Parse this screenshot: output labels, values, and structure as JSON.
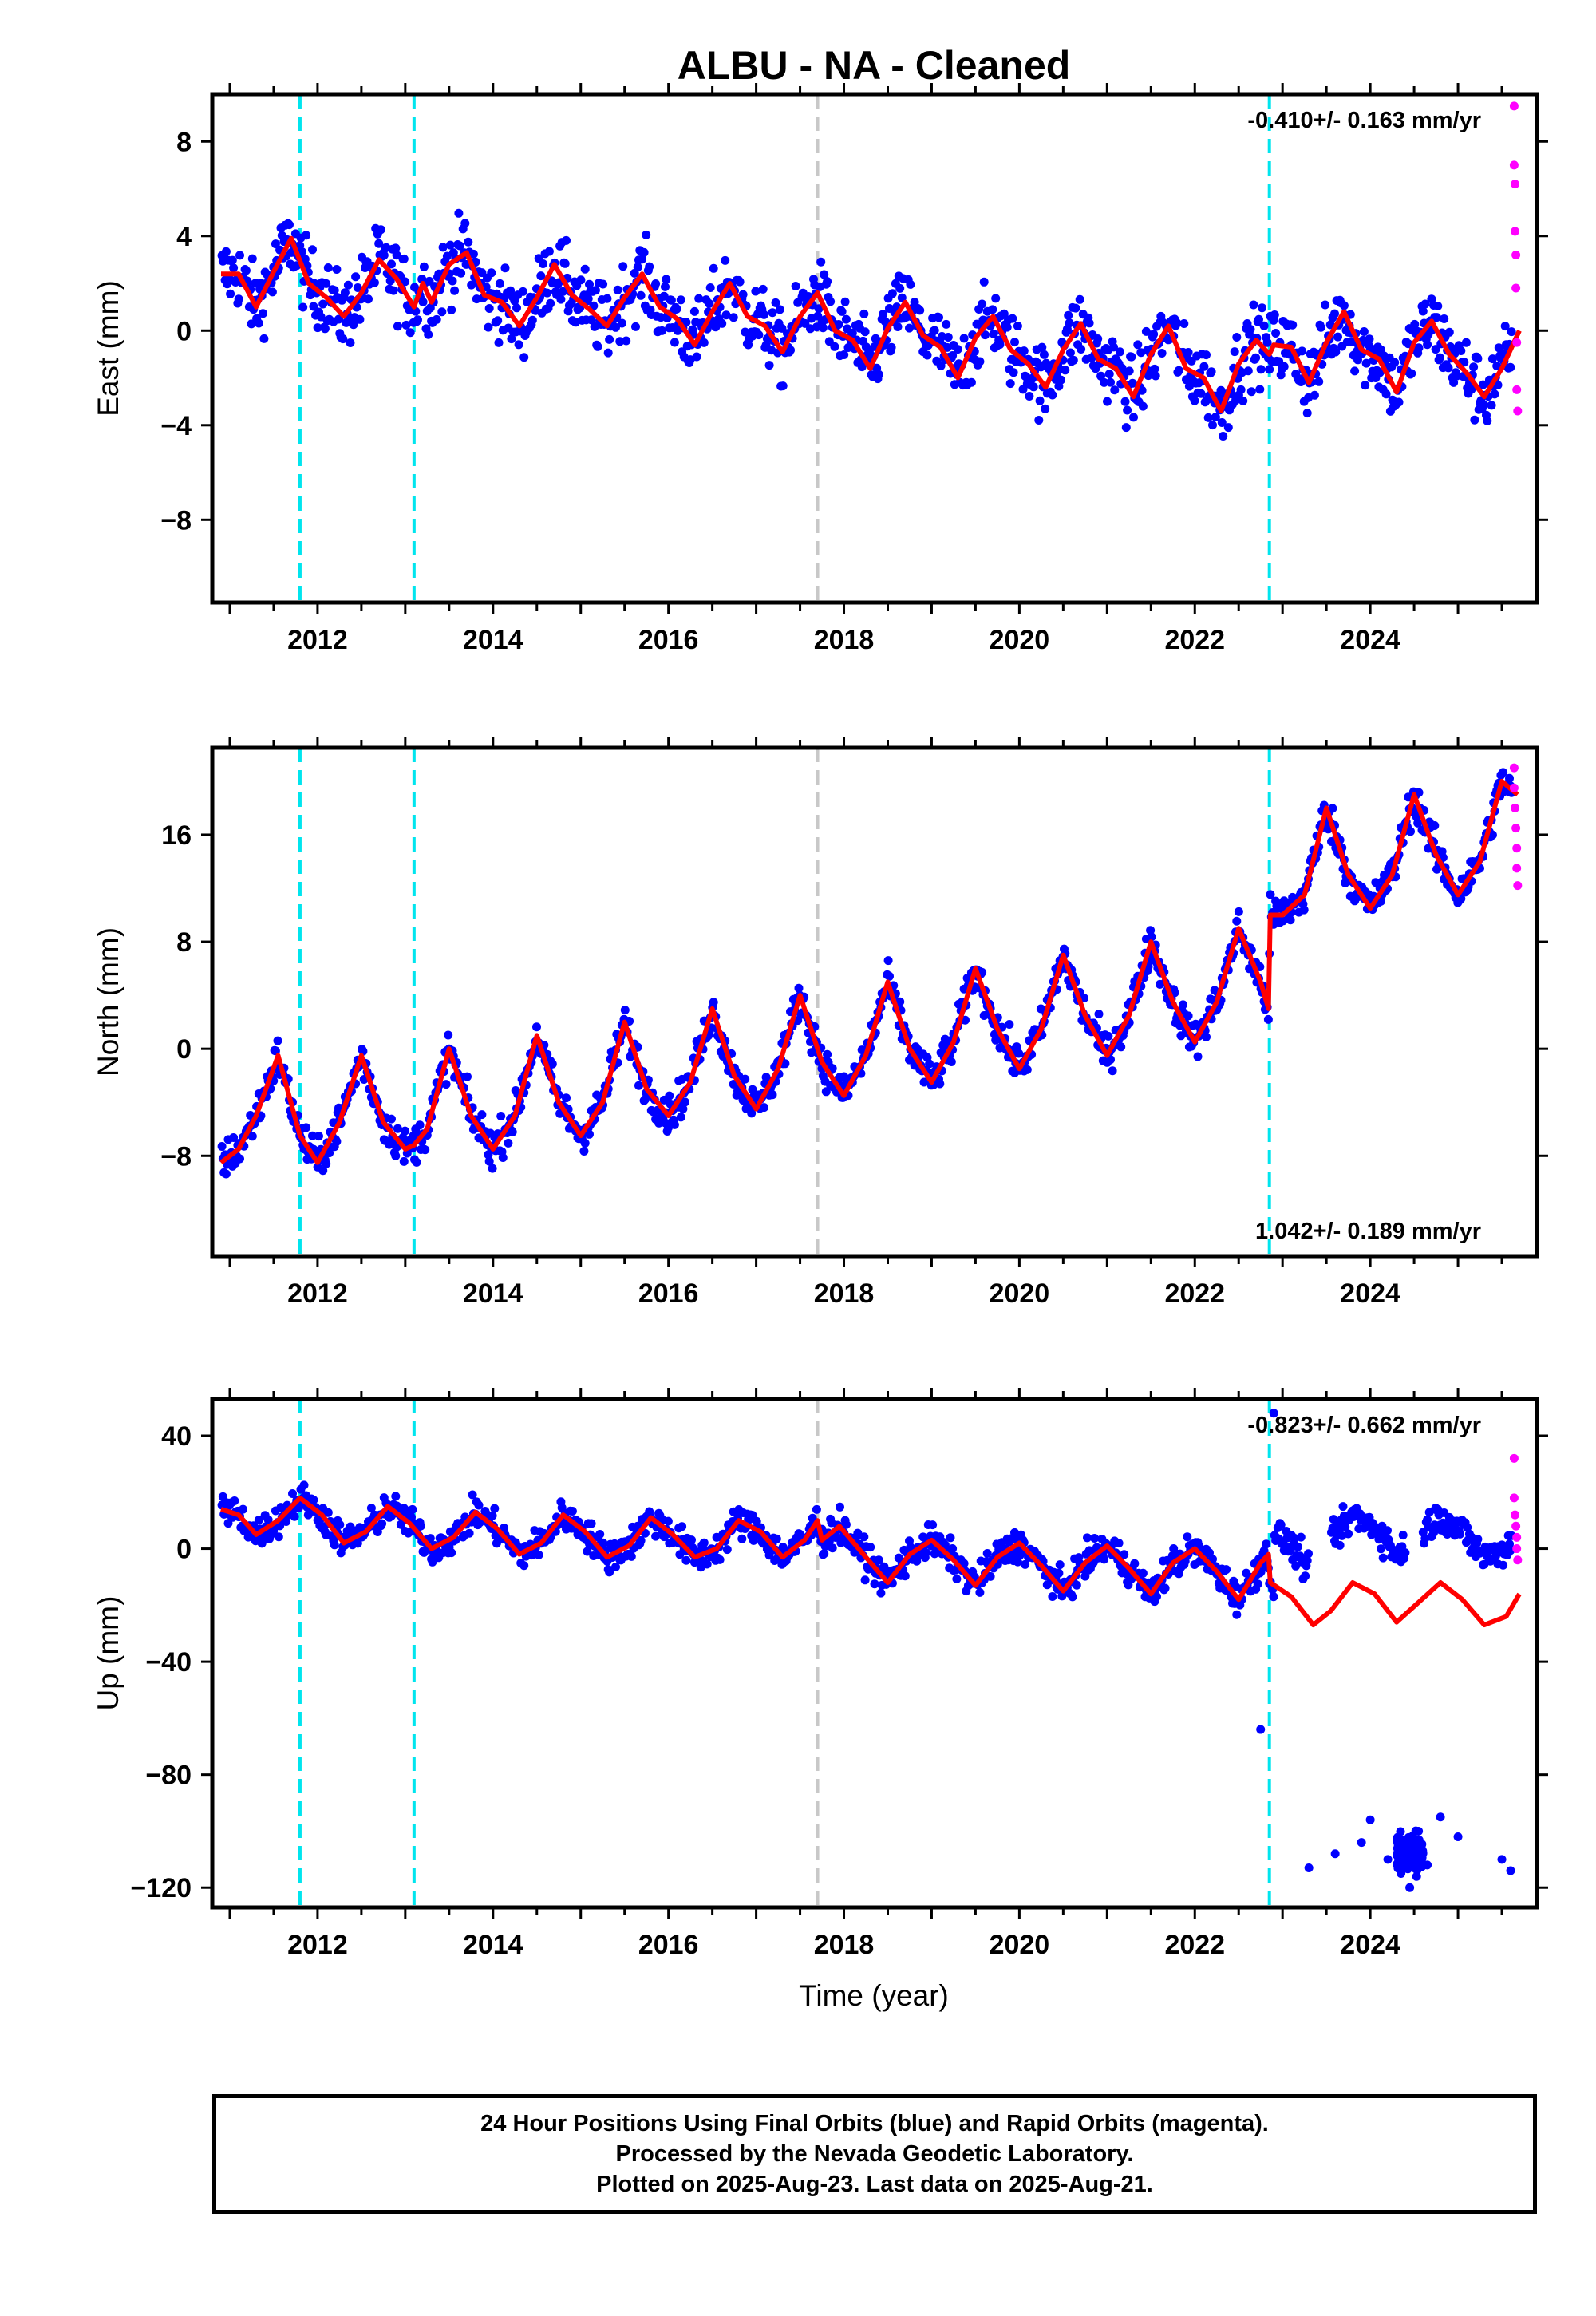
{
  "chart_data": {
    "type": "scatter",
    "title": "ALBU  - NA - Cleaned",
    "xlabel": "Time (year)",
    "x_ticks": [
      2012,
      2014,
      2016,
      2018,
      2020,
      2022,
      2024
    ],
    "xlim": [
      2010.8,
      2025.9
    ],
    "colors": {
      "final_orbits": "#0000ff",
      "rapid_orbits": "#ff00ff",
      "model": "#ff0000",
      "equipment_change": "#00e5ee",
      "other_event": "#c8c8c8",
      "frame": "#000000"
    },
    "event_lines": [
      {
        "x": 2011.8,
        "kind": "equipment_change"
      },
      {
        "x": 2013.1,
        "kind": "equipment_change"
      },
      {
        "x": 2017.7,
        "kind": "other_event"
      },
      {
        "x": 2022.85,
        "kind": "equipment_change"
      }
    ],
    "panels": [
      {
        "component": "east",
        "ylabel": "East (mm)",
        "ylim": [
          -11.5,
          10
        ],
        "y_ticks": [
          8,
          4,
          0,
          -4,
          -8
        ],
        "y_tick_labels": [
          "8",
          "4",
          "0",
          "−4",
          "−8"
        ],
        "rate_text": "-0.410+/- 0.163 mm/yr",
        "rate_position": "top-right",
        "series": [
          {
            "role": "model",
            "x": [
              2010.9,
              2011.1,
              2011.3,
              2011.5,
              2011.7,
              2011.9,
              2012.1,
              2012.3,
              2012.5,
              2012.7,
              2012.9,
              2013.1,
              2013.2,
              2013.3,
              2013.5,
              2013.7,
              2013.9,
              2014.1,
              2014.3,
              2014.5,
              2014.7,
              2014.9,
              2015.1,
              2015.3,
              2015.5,
              2015.7,
              2015.9,
              2016.1,
              2016.3,
              2016.5,
              2016.7,
              2016.9,
              2017.1,
              2017.3,
              2017.5,
              2017.7,
              2017.9,
              2018.1,
              2018.3,
              2018.5,
              2018.7,
              2018.9,
              2019.1,
              2019.3,
              2019.5,
              2019.7,
              2019.9,
              2020.1,
              2020.3,
              2020.5,
              2020.7,
              2020.9,
              2021.1,
              2021.3,
              2021.5,
              2021.7,
              2021.9,
              2022.1,
              2022.3,
              2022.5,
              2022.7,
              2022.85,
              2022.9,
              2023.1,
              2023.3,
              2023.5,
              2023.7,
              2023.9,
              2024.1,
              2024.3,
              2024.5,
              2024.7,
              2024.9,
              2025.1,
              2025.3,
              2025.5,
              2025.7
            ],
            "y": [
              2.4,
              2.4,
              1.0,
              2.5,
              3.9,
              2.0,
              1.4,
              0.6,
              1.6,
              3.0,
              2.2,
              1.0,
              2.0,
              1.2,
              2.8,
              3.3,
              1.5,
              1.2,
              0.2,
              1.4,
              2.8,
              1.5,
              0.9,
              0.2,
              1.4,
              2.4,
              1.0,
              0.5,
              -0.6,
              0.8,
              2.0,
              0.6,
              0.2,
              -0.9,
              0.6,
              1.6,
              0.0,
              -0.4,
              -1.6,
              0.1,
              1.2,
              -0.2,
              -0.7,
              -2.0,
              -0.3,
              0.6,
              -0.8,
              -1.4,
              -2.4,
              -0.8,
              0.3,
              -1.2,
              -1.6,
              -2.8,
              -1.0,
              0.2,
              -1.6,
              -2.0,
              -3.4,
              -1.4,
              -0.4,
              -1.0,
              -0.6,
              -0.7,
              -2.2,
              -0.5,
              0.8,
              -0.8,
              -1.2,
              -2.6,
              -0.5,
              0.4,
              -1.0,
              -1.8,
              -2.8,
              -1.6,
              0.0
            ]
          },
          {
            "role": "rapid",
            "x": [
              2025.64,
              2025.64,
              2025.65,
              2025.65,
              2025.66,
              2025.66,
              2025.67,
              2025.67,
              2025.68
            ],
            "y": [
              9.5,
              7.0,
              6.2,
              4.2,
              3.2,
              1.8,
              -0.5,
              -2.5,
              -3.4
            ]
          }
        ]
      },
      {
        "component": "north",
        "ylabel": "North (mm)",
        "ylim": [
          -15.5,
          22.5
        ],
        "y_ticks": [
          16,
          8,
          0,
          -8
        ],
        "y_tick_labels": [
          "16",
          "8",
          "0",
          "−8"
        ],
        "rate_text": "1.042+/- 0.189 mm/yr",
        "rate_position": "bottom-right",
        "series": [
          {
            "role": "model",
            "x": [
              2010.9,
              2011.1,
              2011.3,
              2011.55,
              2011.8,
              2012.0,
              2012.25,
              2012.5,
              2012.75,
              2013.0,
              2013.1,
              2013.25,
              2013.5,
              2013.75,
              2014.0,
              2014.25,
              2014.5,
              2014.75,
              2015.0,
              2015.25,
              2015.5,
              2015.75,
              2016.0,
              2016.25,
              2016.5,
              2016.75,
              2017.0,
              2017.25,
              2017.5,
              2017.75,
              2018.0,
              2018.25,
              2018.5,
              2018.75,
              2019.0,
              2019.25,
              2019.5,
              2019.75,
              2020.0,
              2020.25,
              2020.5,
              2020.75,
              2021.0,
              2021.25,
              2021.5,
              2021.75,
              2022.0,
              2022.25,
              2022.5,
              2022.75,
              2022.84,
              2022.86,
              2023.0,
              2023.25,
              2023.5,
              2023.75,
              2024.0,
              2024.25,
              2024.5,
              2024.75,
              2025.0,
              2025.25,
              2025.5,
              2025.68
            ],
            "y": [
              -8.5,
              -7.5,
              -5.0,
              -0.5,
              -6.5,
              -8.5,
              -5.5,
              -0.5,
              -5.5,
              -7.5,
              -7.2,
              -6.0,
              0.0,
              -5.0,
              -7.5,
              -5.0,
              1.0,
              -4.0,
              -6.5,
              -4.0,
              2.0,
              -3.0,
              -5.0,
              -2.5,
              3.0,
              -2.0,
              -4.5,
              -1.5,
              4.0,
              -1.0,
              -3.5,
              -0.5,
              5.0,
              0.0,
              -2.5,
              0.5,
              6.0,
              1.5,
              -1.5,
              1.5,
              7.0,
              2.5,
              -0.5,
              2.5,
              8.0,
              3.5,
              0.5,
              3.5,
              9.0,
              5.0,
              3.0,
              10.0,
              10.0,
              11.5,
              18.0,
              13.0,
              10.5,
              13.0,
              19.0,
              14.5,
              11.5,
              14.0,
              20.0,
              19.0
            ]
          },
          {
            "role": "rapid",
            "x": [
              2025.64,
              2025.64,
              2025.65,
              2025.66,
              2025.67,
              2025.67,
              2025.68
            ],
            "y": [
              21.0,
              19.5,
              18.0,
              16.5,
              15.0,
              13.5,
              12.2
            ]
          }
        ]
      },
      {
        "component": "up",
        "ylabel": "Up (mm)",
        "ylim": [
          -127,
          53
        ],
        "y_ticks": [
          40,
          0,
          -40,
          -80,
          -120
        ],
        "y_tick_labels": [
          "40",
          "0",
          "−40",
          "−80",
          "−120"
        ],
        "rate_text": "-0.823+/- 0.662 mm/yr",
        "rate_position": "top-right",
        "series": [
          {
            "role": "model",
            "x": [
              2010.9,
              2011.1,
              2011.3,
              2011.55,
              2011.8,
              2012.05,
              2012.3,
              2012.55,
              2012.8,
              2013.05,
              2013.3,
              2013.55,
              2013.8,
              2014.05,
              2014.3,
              2014.55,
              2014.8,
              2015.05,
              2015.3,
              2015.55,
              2015.8,
              2016.05,
              2016.3,
              2016.55,
              2016.8,
              2017.05,
              2017.3,
              2017.55,
              2017.7,
              2017.75,
              2017.95,
              2018.25,
              2018.5,
              2018.75,
              2019.0,
              2019.25,
              2019.5,
              2019.75,
              2020.0,
              2020.25,
              2020.5,
              2020.75,
              2021.0,
              2021.25,
              2021.5,
              2021.75,
              2022.0,
              2022.25,
              2022.5,
              2022.75,
              2022.84,
              2022.86,
              2023.1,
              2023.35,
              2023.55,
              2023.8,
              2024.05,
              2024.3,
              2024.55,
              2024.8,
              2025.05,
              2025.3,
              2025.55,
              2025.7
            ],
            "y": [
              14,
              12,
              5,
              10,
              18,
              12,
              2,
              6,
              15,
              9,
              0,
              4,
              13,
              7,
              -2,
              2,
              12,
              6,
              -3,
              1,
              11,
              5,
              -3,
              0,
              10,
              6,
              -3,
              3,
              10,
              3,
              8,
              -3,
              -12,
              -2,
              3,
              -4,
              -13,
              -3,
              2,
              -6,
              -15,
              -5,
              1,
              -7,
              -16,
              -5,
              0,
              -8,
              -18,
              -5,
              -2,
              -12,
              -17,
              -27,
              -22,
              -12,
              -16,
              -26,
              -19,
              -12,
              -18,
              -27,
              -24,
              -16
            ]
          },
          {
            "role": "final_outliers",
            "x": [
              2023.3,
              2023.6,
              2023.9,
              2024.0,
              2024.2,
              2024.35,
              2024.45,
              2024.55,
              2024.65,
              2024.8,
              2025.0,
              2025.5,
              2025.6,
              2022.75,
              2022.9
            ],
            "y": [
              -113,
              -108,
              -104,
              -96,
              -110,
              -115,
              -120,
              -100,
              -112,
              -95,
              -102,
              -110,
              -114,
              -64,
              48
            ]
          },
          {
            "role": "rapid",
            "x": [
              2025.64,
              2025.64,
              2025.65,
              2025.66,
              2025.67,
              2025.67,
              2025.68
            ],
            "y": [
              32,
              18,
              12,
              8,
              4,
              0,
              -4
            ]
          }
        ]
      }
    ]
  },
  "footer": {
    "line1": "24 Hour Positions Using Final Orbits (blue) and Rapid Orbits (magenta).",
    "line2": "Processed by the Nevada Geodetic Laboratory.",
    "line3": "Plotted on 2025-Aug-23. Last data on 2025-Aug-21."
  }
}
